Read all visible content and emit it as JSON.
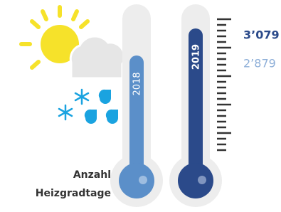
{
  "caption": {
    "lines": [
      "Anzahl",
      "Heizgradtage"
    ]
  },
  "thermometers": [
    {
      "year": "2018",
      "value": "2’879"
    },
    {
      "year": "2019",
      "value": "3’079"
    }
  ]
}
